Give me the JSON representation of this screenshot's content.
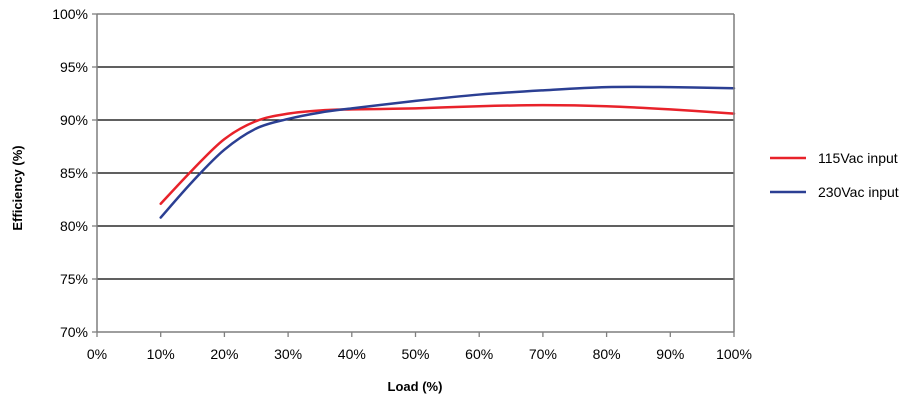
{
  "chart_data": {
    "type": "line",
    "title": "",
    "xlabel": "Load (%)",
    "ylabel": "Efficiency (%)",
    "xlim": [
      0,
      100
    ],
    "ylim": [
      70,
      100
    ],
    "x_ticks": [
      0,
      10,
      20,
      30,
      40,
      50,
      60,
      70,
      80,
      90,
      100
    ],
    "x_tick_labels": [
      "0%",
      "10%",
      "20%",
      "30%",
      "40%",
      "50%",
      "60%",
      "70%",
      "80%",
      "90%",
      "100%"
    ],
    "y_ticks": [
      70,
      75,
      80,
      85,
      90,
      95,
      100
    ],
    "y_tick_labels": [
      "70%",
      "75%",
      "80%",
      "85%",
      "90%",
      "95%",
      "100%"
    ],
    "grid": "horizontal",
    "legend_position": "right",
    "series": [
      {
        "name": "115Vac input",
        "color": "#e8222a",
        "x": [
          10,
          15,
          20,
          25,
          30,
          35,
          40,
          50,
          60,
          70,
          80,
          90,
          100
        ],
        "y": [
          82.1,
          85.3,
          88.2,
          89.9,
          90.6,
          90.9,
          91.0,
          91.1,
          91.3,
          91.4,
          91.3,
          91.0,
          90.6
        ]
      },
      {
        "name": "230Vac input",
        "color": "#2b3f93",
        "x": [
          10,
          15,
          20,
          25,
          30,
          35,
          40,
          50,
          60,
          70,
          80,
          90,
          100
        ],
        "y": [
          80.8,
          84.2,
          87.2,
          89.2,
          90.1,
          90.7,
          91.1,
          91.8,
          92.4,
          92.8,
          93.1,
          93.1,
          93.0
        ]
      }
    ]
  }
}
